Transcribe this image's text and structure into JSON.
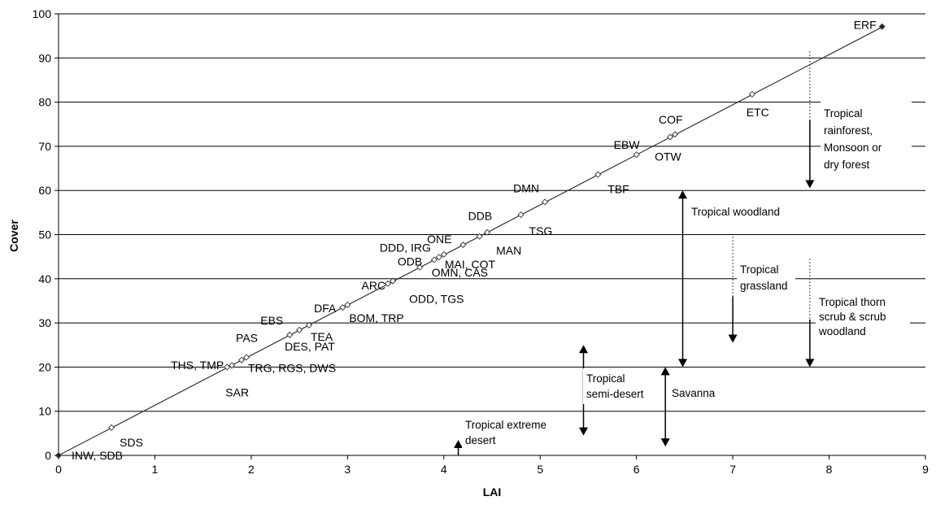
{
  "chart_data": {
    "type": "scatter",
    "xlabel": "LAI",
    "ylabel": "Cover",
    "xlim": [
      0,
      9
    ],
    "ylim": [
      0,
      100
    ],
    "x_ticks": [
      "0",
      "1",
      "2",
      "3",
      "4",
      "5",
      "6",
      "7",
      "8",
      "9"
    ],
    "y_ticks": [
      "0",
      "10",
      "20",
      "30",
      "40",
      "50",
      "60",
      "70",
      "80",
      "90",
      "100"
    ],
    "grid": "horizontal",
    "fit_line": {
      "x": [
        0,
        8.55
      ],
      "y": [
        0,
        97
      ]
    },
    "points": [
      {
        "x": 0.0,
        "y": 0.0,
        "label": "INW, SDB"
      },
      {
        "x": 0.55,
        "y": 6.3,
        "label": "SDS"
      },
      {
        "x": 1.75,
        "y": 20.0,
        "label": "SAR"
      },
      {
        "x": 1.8,
        "y": 20.4,
        "label": "THS, TMP"
      },
      {
        "x": 1.9,
        "y": 21.6,
        "label": "PAS"
      },
      {
        "x": 1.95,
        "y": 22.2,
        "label": "TRG, RGS, DWS"
      },
      {
        "x": 2.4,
        "y": 27.3,
        "label": "EBS"
      },
      {
        "x": 2.5,
        "y": 28.4,
        "label": "DES, PAT"
      },
      {
        "x": 2.6,
        "y": 29.5,
        "label": "TEA"
      },
      {
        "x": 2.95,
        "y": 33.5,
        "label": "DFA"
      },
      {
        "x": 3.0,
        "y": 34.1,
        "label": "BOM, TRP"
      },
      {
        "x": 3.42,
        "y": 38.9,
        "label": "ARC"
      },
      {
        "x": 3.47,
        "y": 39.5,
        "label": "ODD, TGS"
      },
      {
        "x": 3.75,
        "y": 42.6,
        "label": "ODB"
      },
      {
        "x": 3.9,
        "y": 44.3,
        "label": "DDD, IRG"
      },
      {
        "x": 3.95,
        "y": 44.9,
        "label": "MAI, COT"
      },
      {
        "x": 4.0,
        "y": 45.5,
        "label": "OMN, CAS"
      },
      {
        "x": 4.2,
        "y": 47.7,
        "label": "ONE"
      },
      {
        "x": 4.37,
        "y": 49.6,
        "label": "DDB"
      },
      {
        "x": 4.45,
        "y": 50.5,
        "label": "MAN"
      },
      {
        "x": 4.8,
        "y": 54.5,
        "label": "TSG"
      },
      {
        "x": 5.05,
        "y": 57.4,
        "label": "DMN"
      },
      {
        "x": 5.6,
        "y": 63.6,
        "label": "TBF"
      },
      {
        "x": 6.0,
        "y": 68.1,
        "label": "EBW"
      },
      {
        "x": 6.35,
        "y": 72.1,
        "label": "OTW"
      },
      {
        "x": 6.4,
        "y": 72.7,
        "label": "COF"
      },
      {
        "x": 7.2,
        "y": 81.8,
        "label": "ETC"
      },
      {
        "x": 8.55,
        "y": 97.1,
        "label": "ERF"
      }
    ],
    "zones": [
      {
        "label": "Tropical rainforest, Monsoon or dry forest",
        "x": 7.8,
        "y_top": 91.5,
        "y_bottom": 60.5
      },
      {
        "label": "Tropical woodland",
        "x": 6.48,
        "y_top": 60.0,
        "y_bottom": 20.0
      },
      {
        "label": "Tropical grassland",
        "x": 7.0,
        "y_top": 49.5,
        "y_bottom": 25.5
      },
      {
        "label": "Tropical thorn scrub & scrub woodland",
        "x": 7.8,
        "y_top": 44.5,
        "y_bottom": 20.0
      },
      {
        "label": "Tropical semi-desert",
        "x": 5.45,
        "y_top": 25.0,
        "y_bottom": 4.5
      },
      {
        "label": "Savanna",
        "x": 6.3,
        "y_top": 20.0,
        "y_bottom": 2.0
      },
      {
        "label": "Tropical extreme desert",
        "x": 4.15,
        "y_top": 3.5,
        "y_bottom": 0
      }
    ]
  }
}
